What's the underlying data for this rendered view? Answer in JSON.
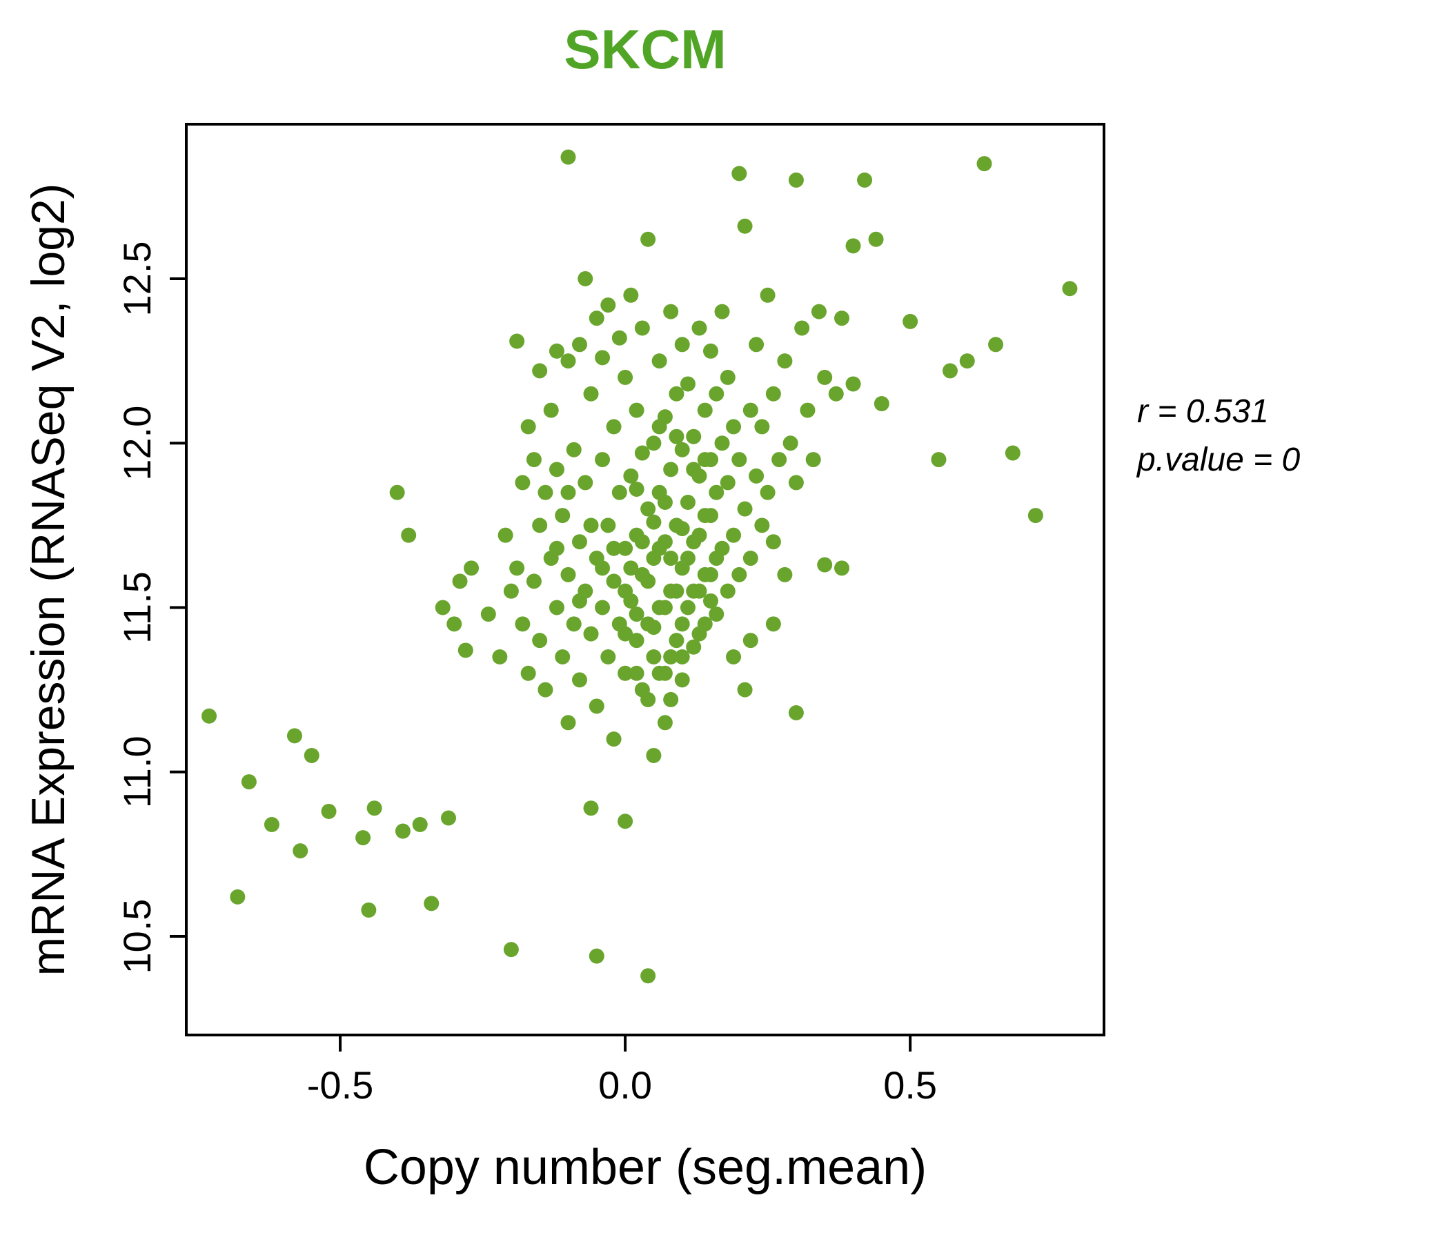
{
  "annotation": {
    "r_line": "r = 0.531",
    "p_line": "p.value = 0"
  },
  "colors": {
    "point": "#69A52D",
    "title": "#50A426",
    "axis": "#000000"
  },
  "chart_data": {
    "type": "scatter",
    "title": "SKCM",
    "xlabel": "Copy number (seg.mean)",
    "ylabel": "mRNA Expression (RNASeq V2, log2)",
    "xlim": [
      -0.77,
      0.84
    ],
    "ylim": [
      10.2,
      12.97
    ],
    "xticks": [
      -0.5,
      0.0,
      0.5
    ],
    "yticks": [
      10.5,
      11.0,
      11.5,
      12.0,
      12.5
    ],
    "grid": false,
    "legend": null,
    "stats": {
      "r": 0.531,
      "p_value": 0
    },
    "points": [
      [
        -0.24,
        11.48
      ],
      [
        -0.22,
        11.35
      ],
      [
        -0.21,
        11.72
      ],
      [
        -0.2,
        11.55
      ],
      [
        -0.19,
        12.31
      ],
      [
        -0.19,
        11.62
      ],
      [
        -0.18,
        11.88
      ],
      [
        -0.18,
        11.45
      ],
      [
        -0.17,
        12.05
      ],
      [
        -0.17,
        11.3
      ],
      [
        -0.16,
        11.95
      ],
      [
        -0.16,
        11.58
      ],
      [
        -0.15,
        12.22
      ],
      [
        -0.15,
        11.75
      ],
      [
        -0.15,
        11.4
      ],
      [
        -0.14,
        11.85
      ],
      [
        -0.14,
        11.25
      ],
      [
        -0.13,
        12.1
      ],
      [
        -0.13,
        11.65
      ],
      [
        -0.12,
        12.28
      ],
      [
        -0.12,
        11.5
      ],
      [
        -0.12,
        11.92
      ],
      [
        -0.11,
        11.35
      ],
      [
        -0.11,
        11.78
      ],
      [
        -0.1,
        12.87
      ],
      [
        -0.1,
        12.25
      ],
      [
        -0.1,
        11.6
      ],
      [
        -0.1,
        11.15
      ],
      [
        -0.09,
        11.98
      ],
      [
        -0.09,
        11.45
      ],
      [
        -0.08,
        12.3
      ],
      [
        -0.08,
        11.7
      ],
      [
        -0.08,
        11.28
      ],
      [
        -0.07,
        12.5
      ],
      [
        -0.07,
        11.55
      ],
      [
        -0.07,
        11.88
      ],
      [
        -0.06,
        12.15
      ],
      [
        -0.06,
        11.42
      ],
      [
        -0.06,
        10.89
      ],
      [
        -0.05,
        12.38
      ],
      [
        -0.05,
        11.65
      ],
      [
        -0.05,
        11.2
      ],
      [
        -0.04,
        11.95
      ],
      [
        -0.04,
        11.5
      ],
      [
        -0.04,
        12.26
      ],
      [
        -0.03,
        11.35
      ],
      [
        -0.03,
        11.75
      ],
      [
        -0.03,
        12.42
      ],
      [
        -0.02,
        11.58
      ],
      [
        -0.02,
        12.05
      ],
      [
        -0.02,
        11.1
      ],
      [
        -0.01,
        11.45
      ],
      [
        -0.01,
        11.85
      ],
      [
        -0.01,
        12.32
      ],
      [
        0.0,
        11.3
      ],
      [
        0.0,
        11.68
      ],
      [
        0.0,
        12.2
      ],
      [
        0.0,
        10.85
      ],
      [
        0.01,
        11.52
      ],
      [
        0.01,
        11.9
      ],
      [
        0.01,
        12.45
      ],
      [
        0.02,
        11.4
      ],
      [
        0.02,
        11.72
      ],
      [
        0.02,
        12.1
      ],
      [
        0.03,
        11.25
      ],
      [
        0.03,
        11.6
      ],
      [
        0.03,
        11.97
      ],
      [
        0.03,
        12.35
      ],
      [
        0.04,
        11.45
      ],
      [
        0.04,
        11.8
      ],
      [
        0.04,
        12.62
      ],
      [
        0.04,
        10.38
      ],
      [
        0.05,
        11.35
      ],
      [
        0.05,
        11.65
      ],
      [
        0.05,
        12.0
      ],
      [
        0.05,
        11.05
      ],
      [
        0.06,
        11.5
      ],
      [
        0.06,
        11.85
      ],
      [
        0.06,
        12.25
      ],
      [
        0.07,
        11.3
      ],
      [
        0.07,
        11.7
      ],
      [
        0.07,
        12.08
      ],
      [
        0.07,
        11.15
      ],
      [
        0.08,
        11.55
      ],
      [
        0.08,
        11.92
      ],
      [
        0.08,
        12.4
      ],
      [
        0.09,
        11.4
      ],
      [
        0.09,
        11.75
      ],
      [
        0.09,
        12.15
      ],
      [
        0.1,
        11.28
      ],
      [
        0.1,
        11.62
      ],
      [
        0.1,
        11.98
      ],
      [
        0.1,
        12.3
      ],
      [
        0.11,
        11.5
      ],
      [
        0.11,
        11.82
      ],
      [
        0.11,
        12.18
      ],
      [
        0.12,
        11.38
      ],
      [
        0.12,
        11.7
      ],
      [
        0.12,
        12.02
      ],
      [
        0.13,
        11.55
      ],
      [
        0.13,
        11.9
      ],
      [
        0.13,
        12.35
      ],
      [
        0.14,
        11.45
      ],
      [
        0.14,
        11.78
      ],
      [
        0.14,
        12.1
      ],
      [
        0.15,
        11.6
      ],
      [
        0.15,
        11.95
      ],
      [
        0.15,
        12.28
      ],
      [
        0.16,
        11.48
      ],
      [
        0.16,
        11.85
      ],
      [
        0.16,
        12.15
      ],
      [
        0.17,
        11.68
      ],
      [
        0.17,
        12.0
      ],
      [
        0.17,
        12.4
      ],
      [
        0.18,
        11.55
      ],
      [
        0.18,
        11.88
      ],
      [
        0.18,
        12.2
      ],
      [
        0.19,
        11.72
      ],
      [
        0.19,
        12.05
      ],
      [
        0.19,
        11.35
      ],
      [
        0.2,
        11.6
      ],
      [
        0.2,
        11.95
      ],
      [
        0.2,
        12.82
      ],
      [
        0.21,
        12.66
      ],
      [
        0.21,
        11.8
      ],
      [
        0.21,
        11.25
      ],
      [
        0.22,
        12.1
      ],
      [
        0.22,
        11.65
      ],
      [
        0.22,
        11.4
      ],
      [
        0.23,
        11.9
      ],
      [
        0.23,
        12.3
      ],
      [
        0.24,
        11.75
      ],
      [
        0.24,
        12.05
      ],
      [
        0.25,
        11.85
      ],
      [
        0.25,
        12.45
      ],
      [
        0.26,
        11.7
      ],
      [
        0.26,
        12.15
      ],
      [
        0.26,
        11.45
      ],
      [
        0.27,
        11.95
      ],
      [
        0.28,
        12.25
      ],
      [
        0.28,
        11.6
      ],
      [
        0.29,
        12.0
      ],
      [
        0.3,
        12.8
      ],
      [
        0.3,
        11.88
      ],
      [
        0.3,
        11.18
      ],
      [
        0.31,
        12.35
      ],
      [
        0.32,
        12.1
      ],
      [
        0.33,
        11.95
      ],
      [
        0.34,
        12.4
      ],
      [
        0.35,
        12.2
      ],
      [
        0.35,
        11.63
      ],
      [
        0.37,
        12.15
      ],
      [
        0.38,
        11.62
      ],
      [
        0.38,
        12.38
      ],
      [
        0.4,
        12.6
      ],
      [
        0.4,
        12.18
      ],
      [
        0.42,
        12.8
      ],
      [
        0.44,
        12.62
      ],
      [
        0.45,
        12.12
      ],
      [
        0.5,
        12.37
      ],
      [
        0.55,
        11.95
      ],
      [
        0.57,
        12.22
      ],
      [
        0.6,
        12.25
      ],
      [
        0.63,
        12.85
      ],
      [
        0.65,
        12.3
      ],
      [
        0.68,
        11.97
      ],
      [
        0.72,
        11.78
      ],
      [
        0.78,
        12.47
      ],
      [
        -0.73,
        11.17
      ],
      [
        -0.68,
        10.62
      ],
      [
        -0.66,
        10.97
      ],
      [
        -0.62,
        10.84
      ],
      [
        -0.58,
        11.11
      ],
      [
        -0.57,
        10.76
      ],
      [
        -0.55,
        11.05
      ],
      [
        -0.52,
        10.88
      ],
      [
        -0.46,
        10.8
      ],
      [
        -0.45,
        10.58
      ],
      [
        -0.44,
        10.89
      ],
      [
        -0.4,
        11.85
      ],
      [
        -0.39,
        10.82
      ],
      [
        -0.38,
        11.72
      ],
      [
        -0.36,
        10.84
      ],
      [
        -0.34,
        10.6
      ],
      [
        -0.32,
        11.5
      ],
      [
        -0.31,
        10.86
      ],
      [
        -0.3,
        11.45
      ],
      [
        -0.29,
        11.58
      ],
      [
        -0.28,
        11.37
      ],
      [
        -0.27,
        11.62
      ],
      [
        -0.2,
        10.46
      ],
      [
        -0.05,
        10.44
      ],
      [
        0.0,
        11.55
      ],
      [
        0.01,
        11.62
      ],
      [
        0.02,
        11.48
      ],
      [
        0.02,
        11.86
      ],
      [
        0.03,
        11.7
      ],
      [
        0.04,
        11.58
      ],
      [
        0.05,
        11.76
      ],
      [
        0.05,
        11.44
      ],
      [
        0.06,
        11.68
      ],
      [
        0.06,
        12.05
      ],
      [
        0.07,
        11.5
      ],
      [
        0.07,
        11.82
      ],
      [
        0.08,
        11.65
      ],
      [
        0.08,
        11.35
      ],
      [
        0.09,
        11.55
      ],
      [
        0.09,
        12.02
      ],
      [
        0.1,
        11.74
      ],
      [
        0.1,
        11.45
      ],
      [
        0.11,
        11.65
      ],
      [
        0.12,
        11.55
      ],
      [
        0.12,
        11.92
      ],
      [
        0.13,
        11.42
      ],
      [
        0.13,
        11.72
      ],
      [
        0.14,
        11.6
      ],
      [
        0.14,
        11.95
      ],
      [
        0.15,
        11.52
      ],
      [
        0.15,
        11.78
      ],
      [
        0.16,
        11.65
      ],
      [
        0.02,
        11.3
      ],
      [
        0.04,
        11.22
      ],
      [
        0.06,
        11.3
      ],
      [
        0.08,
        11.22
      ],
      [
        0.1,
        11.35
      ],
      [
        0.0,
        11.42
      ],
      [
        -0.02,
        11.68
      ],
      [
        -0.04,
        11.62
      ],
      [
        -0.06,
        11.75
      ],
      [
        -0.08,
        11.52
      ],
      [
        -0.1,
        11.85
      ],
      [
        -0.12,
        11.68
      ]
    ]
  }
}
